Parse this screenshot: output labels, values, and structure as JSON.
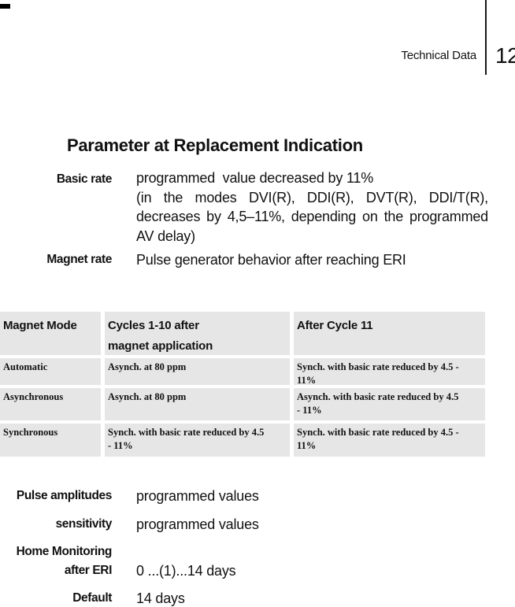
{
  "header": {
    "section": "Technical Data",
    "page_number": "12"
  },
  "title": "Parameter at Replacement Indication",
  "parameters": {
    "basic_rate": {
      "label": "Basic rate",
      "line1": "programmed  value decreased by 11%",
      "line2": "(in the modes DVI(R), DDI(R), DVT(R), DDI/T(R),",
      "line3": "decreases by 4,5–11%, depending on the programmed",
      "line4": "AV delay)"
    },
    "magnet_rate": {
      "label": "Magnet rate",
      "value": "Pulse generator behavior after reaching ERI"
    }
  },
  "table": {
    "headers": [
      "Magnet Mode",
      "Cycles 1-10 after\nmagnet application",
      "After Cycle 11"
    ],
    "rows": [
      {
        "cells": [
          "Automatic",
          "Asynch. at 80 ppm",
          "Synch. with basic rate reduced by 4.5 -\n11%"
        ]
      },
      {
        "cells": [
          "Asynchronous",
          "Asynch. at 80 ppm",
          "Asynch. with basic rate reduced by 4.5\n- 11%"
        ]
      },
      {
        "cells": [
          "Synchronous",
          "Synch. with basic rate reduced by 4.5\n- 11%",
          "Synch. with basic rate reduced by 4.5 -\n11%"
        ]
      }
    ]
  },
  "bottom": {
    "pulse_amplitudes": {
      "label": "Pulse amplitudes",
      "value": "programmed values"
    },
    "sensitivity": {
      "label": "sensitivity",
      "value": "programmed values"
    },
    "home_monitoring": {
      "label_line1": "Home Monitoring",
      "label_line2": "after ERI",
      "value": "0 ...(1)...14 days"
    },
    "default": {
      "label": "Default",
      "value": "14 days"
    }
  },
  "colors": {
    "table_cell_bg": "#e6e6e6",
    "rule": "#161616"
  }
}
